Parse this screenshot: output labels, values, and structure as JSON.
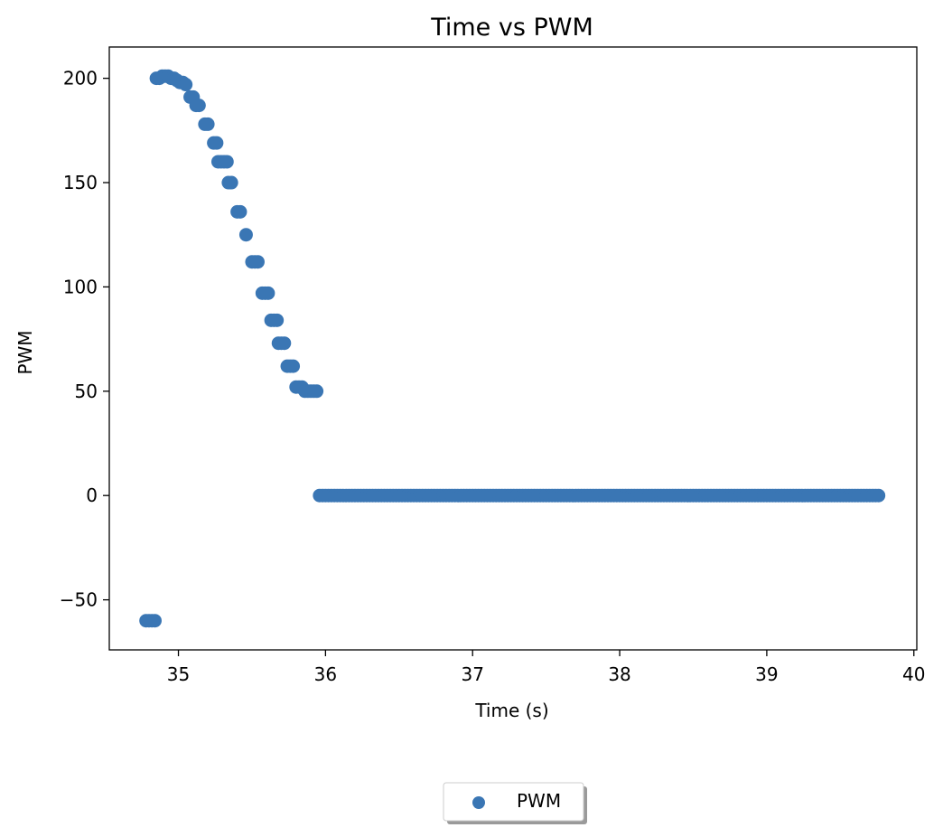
{
  "chart_data": {
    "type": "scatter",
    "title": "Time vs PWM",
    "xlabel": "Time (s)",
    "ylabel": "PWM",
    "xlim": [
      34.53,
      40.02
    ],
    "ylim": [
      -74,
      215
    ],
    "xticks": [
      35,
      36,
      37,
      38,
      39,
      40
    ],
    "yticks": [
      -50,
      0,
      50,
      100,
      150,
      200
    ],
    "xtick_labels": [
      "35",
      "36",
      "37",
      "38",
      "39",
      "40"
    ],
    "ytick_labels": [
      "−50",
      "0",
      "50",
      "100",
      "150",
      "200"
    ],
    "grid": false,
    "legend_position": "bottom-center, outside plot",
    "series": [
      {
        "name": "PWM",
        "color": "#3a76b4",
        "x": [
          34.78,
          34.8,
          34.82,
          34.84,
          34.85,
          34.87,
          34.89,
          34.91,
          34.93,
          34.95,
          34.97,
          34.99,
          35.01,
          35.03,
          35.05,
          35.08,
          35.1,
          35.12,
          35.14,
          35.18,
          35.2,
          35.24,
          35.26,
          35.27,
          35.29,
          35.31,
          35.33,
          35.34,
          35.36,
          35.4,
          35.42,
          35.46,
          35.5,
          35.52,
          35.54,
          35.57,
          35.59,
          35.61,
          35.63,
          35.65,
          35.67,
          35.68,
          35.7,
          35.72,
          35.74,
          35.76,
          35.78,
          35.8,
          35.82,
          35.84,
          35.86,
          35.88,
          35.9,
          35.92,
          35.94
        ],
        "y": [
          -60,
          -60,
          -60,
          -60,
          200,
          200,
          201,
          201,
          201,
          200,
          200,
          199,
          198,
          198,
          197,
          191,
          191,
          187,
          187,
          178,
          178,
          169,
          169,
          160,
          160,
          160,
          160,
          150,
          150,
          136,
          136,
          125,
          112,
          112,
          112,
          97,
          97,
          97,
          84,
          84,
          84,
          73,
          73,
          73,
          62,
          62,
          62,
          52,
          52,
          52,
          50,
          50,
          50,
          50,
          50
        ],
        "zero_run": {
          "x_start": 35.96,
          "x_end": 39.77,
          "step": 0.02,
          "y": 0
        }
      }
    ]
  }
}
